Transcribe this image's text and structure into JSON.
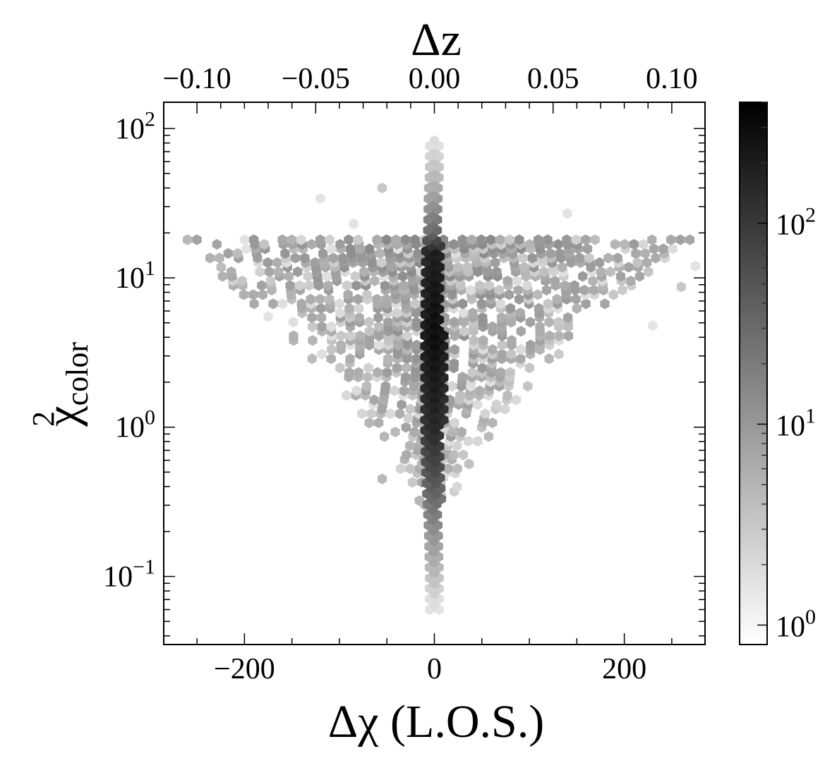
{
  "chart_data": {
    "type": "heatmap",
    "subtype": "hexbin",
    "title": "",
    "xlabel": "Δχ (L.O.S.)",
    "x2label": "Δz",
    "ylabel_base": "χ",
    "ylabel_sup": "2",
    "ylabel_sub": "color",
    "xlim": [
      -285,
      285
    ],
    "x2lim": [
      -0.114,
      0.114
    ],
    "ylim": [
      0.035,
      150
    ],
    "yscale": "log",
    "x_ticks": [
      {
        "value": -200,
        "label": "−200"
      },
      {
        "value": 0,
        "label": "0"
      },
      {
        "value": 200,
        "label": "200"
      }
    ],
    "x2_ticks": [
      {
        "value": -0.1,
        "label": "−0.10"
      },
      {
        "value": -0.05,
        "label": "−0.05"
      },
      {
        "value": 0.0,
        "label": "0.00"
      },
      {
        "value": 0.05,
        "label": "0.05"
      },
      {
        "value": 0.1,
        "label": "0.10"
      }
    ],
    "y_ticks": [
      {
        "value": 0.1,
        "base": "10",
        "exp": "−1"
      },
      {
        "value": 1,
        "base": "10",
        "exp": "0"
      },
      {
        "value": 10,
        "base": "10",
        "exp": "1"
      },
      {
        "value": 100,
        "base": "10",
        "exp": "2"
      }
    ],
    "colorbar": {
      "scale": "log",
      "range": [
        0.8,
        400
      ],
      "cmap": [
        "#ffffff",
        "#000000"
      ],
      "ticks": [
        {
          "value": 1,
          "base": "10",
          "exp": "0"
        },
        {
          "value": 10,
          "base": "10",
          "exp": "1"
        },
        {
          "value": 100,
          "base": "10",
          "exp": "2"
        }
      ]
    },
    "spine": {
      "x_center": 0,
      "profile": [
        {
          "y": 0.06,
          "halfwidth": 2,
          "count": 1
        },
        {
          "y": 0.1,
          "halfwidth": 5,
          "count": 3
        },
        {
          "y": 0.2,
          "halfwidth": 6,
          "count": 10
        },
        {
          "y": 0.5,
          "halfwidth": 9,
          "count": 60
        },
        {
          "y": 1,
          "halfwidth": 10,
          "count": 150
        },
        {
          "y": 4,
          "halfwidth": 10,
          "count": 300
        },
        {
          "y": 15,
          "halfwidth": 9,
          "count": 200
        },
        {
          "y": 20,
          "halfwidth": 7,
          "count": 30
        },
        {
          "y": 40,
          "halfwidth": 6,
          "count": 5
        },
        {
          "y": 90,
          "halfwidth": 2,
          "count": 1
        }
      ]
    },
    "scatter_region": {
      "description_free": true,
      "top_y": 18,
      "bottom_y": 0.3,
      "x_extent_at_top": 270,
      "x_extent_at_bottom": 20,
      "count_range": [
        1,
        12
      ]
    },
    "outliers": [
      {
        "x": -120,
        "y": 34,
        "count": 1
      },
      {
        "x": -55,
        "y": 40,
        "count": 2
      },
      {
        "x": -85,
        "y": 23,
        "count": 1
      },
      {
        "x": 140,
        "y": 27,
        "count": 1
      },
      {
        "x": -175,
        "y": 5.5,
        "count": 1
      },
      {
        "x": 230,
        "y": 4.8,
        "count": 1
      },
      {
        "x": -55,
        "y": 0.45,
        "count": 3
      },
      {
        "x": 260,
        "y": 8.7,
        "count": 2
      },
      {
        "x": 275,
        "y": 12,
        "count": 1
      },
      {
        "x": -200,
        "y": 18,
        "count": 1
      }
    ]
  }
}
